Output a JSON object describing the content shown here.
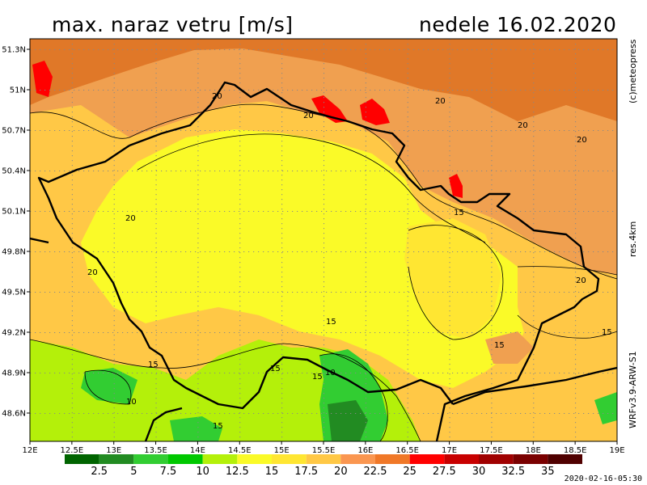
{
  "header": {
    "title": "max. naraz vetru [m/s]",
    "date": "nedele 16.02.2020"
  },
  "side_labels": {
    "copyright": "(c)meteopress",
    "resolution": "res.4km",
    "model": "WRFv3.9-ARW-S1"
  },
  "footer": {
    "timestamp": "2020-02-16-05:30"
  },
  "axes": {
    "lon_labels": [
      "12E",
      "12.5E",
      "13E",
      "13.5E",
      "14E",
      "14.5E",
      "15E",
      "15.5E",
      "16E",
      "16.5E",
      "17E",
      "17.5E",
      "18E",
      "18.5E",
      "19E"
    ],
    "lat_labels": [
      "51.3N",
      "51N",
      "50.7N",
      "50.4N",
      "50.1N",
      "49.8N",
      "49.5N",
      "49.2N",
      "48.9N",
      "48.6N"
    ]
  },
  "contour_labels": [
    "20",
    "20",
    "20",
    "20",
    "20",
    "20",
    "20",
    "20",
    "15",
    "15",
    "15",
    "15",
    "15",
    "15",
    "15",
    "15",
    "10",
    "10"
  ],
  "colorbar": {
    "colors": [
      "#006400",
      "#228b22",
      "#32cd32",
      "#00c800",
      "#b4f00a",
      "#fafa28",
      "#ffe632",
      "#ffc846",
      "#fa9650",
      "#f07828",
      "#ff0000",
      "#c80000",
      "#a00000",
      "#7a0000",
      "#500000"
    ],
    "labels": [
      "2.5",
      "5",
      "7.5",
      "10",
      "12.5",
      "15",
      "17.5",
      "20",
      "22.5",
      "25",
      "27.5",
      "30",
      "32.5",
      "35"
    ]
  },
  "palette": {
    "light_green": "#b4f00a",
    "yellow": "#fafa28",
    "light_orange": "#ffc846",
    "orange": "#f0a050",
    "dark_orange": "#e07828",
    "red": "#ff0000",
    "green": "#32cd32",
    "dark_green": "#228b22",
    "border": "#000000"
  }
}
